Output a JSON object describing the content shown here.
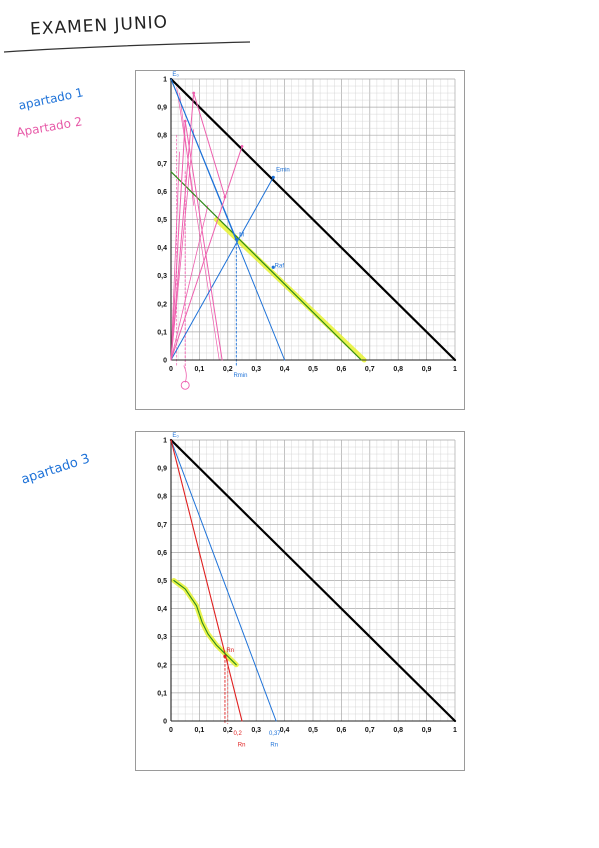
{
  "header": {
    "title": "EXAMEN JUNIO"
  },
  "notes": {
    "apartado_1": "apartado 1",
    "apartado_2": "Apartado 2",
    "apartado_3": "apartado 3"
  },
  "colors": {
    "blue": "#1e72d8",
    "pink": "#ee5fae",
    "red": "#e02020",
    "green": "#2f8a1a",
    "highlight": "#e6f230",
    "black": "#000000",
    "grid": "#c8c8c8"
  },
  "charts": [
    {
      "tick_labels": [
        "0",
        "0,1",
        "0,2",
        "0,3",
        "0,4",
        "0,5",
        "0,6",
        "0,7",
        "0,8",
        "0,9",
        "1"
      ],
      "annotations": {
        "e0": "E₀",
        "emin": "Emin",
        "m": "M",
        "rmin": "Rmin",
        "raf": "Raf"
      }
    },
    {
      "tick_labels": [
        "0",
        "0,1",
        "0,2",
        "0,3",
        "0,4",
        "0,5",
        "0,6",
        "0,7",
        "0,8",
        "0,9",
        "1"
      ],
      "annotations": {
        "e0": "E₀",
        "rn": "Rn",
        "rn_x": "0,2",
        "rn_x2": "0,37"
      }
    }
  ],
  "chart_data": [
    {
      "type": "line",
      "xlim": [
        0,
        1
      ],
      "ylim": [
        0,
        1
      ],
      "series": [
        {
          "points": [
            [
              0,
              1
            ],
            [
              1,
              0
            ]
          ]
        },
        {
          "points": [
            [
              0,
              0.67
            ],
            [
              0.67,
              0
            ]
          ]
        },
        {
          "points": [
            [
              0,
              1
            ],
            [
              0.4,
              0
            ]
          ]
        },
        {
          "points": [
            [
              0,
              0
            ],
            [
              0.36,
              0.65
            ]
          ]
        },
        {
          "points": [
            [
              0,
              1
            ],
            [
              0.23,
              0.43
            ]
          ]
        },
        {
          "points": [
            [
              0,
              0
            ],
            [
              0.25,
              0.76
            ]
          ]
        },
        {
          "points": [
            [
              0,
              0
            ],
            [
              0.08,
              0.95
            ]
          ]
        },
        {
          "points": [
            [
              0,
              0
            ],
            [
              0.05,
              0.85
            ]
          ]
        },
        {
          "points": [
            [
              0.05,
              0.85
            ],
            [
              0.18,
              0
            ]
          ]
        },
        {
          "points": [
            [
              0.08,
              0.95
            ],
            [
              0.19,
              0.58
            ]
          ]
        }
      ]
    },
    {
      "type": "line",
      "xlim": [
        0,
        1
      ],
      "ylim": [
        0,
        1
      ],
      "series": [
        {
          "points": [
            [
              0,
              1
            ],
            [
              1,
              0
            ]
          ]
        },
        {
          "points": [
            [
              0,
              1
            ],
            [
              0.37,
              0
            ]
          ]
        },
        {
          "points": [
            [
              0,
              1
            ],
            [
              0.25,
              0
            ]
          ]
        },
        {
          "points": [
            [
              0.01,
              0.5
            ],
            [
              0.05,
              0.47
            ],
            [
              0.09,
              0.41
            ],
            [
              0.11,
              0.35
            ],
            [
              0.13,
              0.31
            ],
            [
              0.16,
              0.27
            ],
            [
              0.19,
              0.24
            ],
            [
              0.21,
              0.22
            ],
            [
              0.23,
              0.2
            ]
          ]
        }
      ]
    }
  ]
}
